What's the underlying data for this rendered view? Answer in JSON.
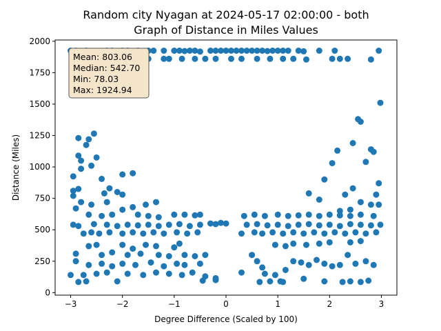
{
  "chart_data": {
    "type": "scatter",
    "title_line1": "Random city Nyagan at 2024-05-17 02:00:00  - both",
    "title_line2": "Graph of Distance in Miles Values",
    "xlabel": "Degree Difference (Scaled by 100)",
    "ylabel": "Distance (Miles)",
    "xlim": [
      -3.3,
      3.3
    ],
    "ylim": [
      -20,
      2010
    ],
    "x_ticks": [
      -3,
      -2,
      -1,
      0,
      1,
      2,
      3
    ],
    "x_tick_labels": [
      "−3",
      "−2",
      "−1",
      "0",
      "1",
      "2",
      "3"
    ],
    "y_ticks": [
      0,
      250,
      500,
      750,
      1000,
      1250,
      1500,
      1750,
      2000
    ],
    "y_tick_labels": [
      "0",
      "250",
      "500",
      "750",
      "1000",
      "1250",
      "1500",
      "1750",
      "2000"
    ],
    "grid": false,
    "legend": null,
    "stats_box": {
      "placement": "top-left",
      "lines": [
        "Mean: 803.06",
        "Median: 542.70",
        "Min: 78.03",
        "Max: 1924.94"
      ]
    },
    "colors": {
      "points": "#1f77b4",
      "stats_fill": "#f5e6cb",
      "stats_edge": "#555555"
    },
    "series": [
      {
        "values": [
          [
            -3.0,
            1925
          ],
          [
            -2.9,
            1925
          ],
          [
            -2.8,
            1920
          ],
          [
            -2.7,
            1925
          ],
          [
            -2.6,
            1915
          ],
          [
            -2.5,
            1920
          ],
          [
            -2.3,
            1925
          ],
          [
            -2.2,
            1925
          ],
          [
            -2.1,
            1922
          ],
          [
            -2.0,
            1925
          ],
          [
            -1.9,
            1925
          ],
          [
            -1.8,
            1922
          ],
          [
            -1.7,
            1925
          ],
          [
            -1.6,
            1918
          ],
          [
            -1.5,
            1925
          ],
          [
            -1.4,
            1925
          ],
          [
            -1.2,
            1925
          ],
          [
            -1.0,
            1925
          ],
          [
            -0.9,
            1925
          ],
          [
            -0.8,
            1922
          ],
          [
            -0.7,
            1925
          ],
          [
            -0.6,
            1925
          ],
          [
            -0.5,
            1918
          ],
          [
            -0.3,
            1925
          ],
          [
            -0.2,
            1925
          ],
          [
            -0.1,
            1925
          ],
          [
            0.0,
            1925
          ],
          [
            0.1,
            1925
          ],
          [
            0.2,
            1925
          ],
          [
            0.3,
            1925
          ],
          [
            0.4,
            1925
          ],
          [
            0.5,
            1925
          ],
          [
            0.6,
            1925
          ],
          [
            0.7,
            1925
          ],
          [
            0.8,
            1922
          ],
          [
            0.9,
            1925
          ],
          [
            1.0,
            1925
          ],
          [
            1.1,
            1925
          ],
          [
            1.2,
            1925
          ],
          [
            1.4,
            1925
          ],
          [
            1.5,
            1920
          ],
          [
            1.8,
            1925
          ],
          [
            2.1,
            1925
          ],
          [
            2.95,
            1925
          ],
          [
            -2.85,
            1855
          ],
          [
            -2.65,
            1860
          ],
          [
            -2.45,
            1860
          ],
          [
            -2.2,
            1865
          ],
          [
            -1.95,
            1860
          ],
          [
            -1.7,
            1860
          ],
          [
            -1.5,
            1860
          ],
          [
            -1.2,
            1860
          ],
          [
            -1.1,
            1860
          ],
          [
            -0.85,
            1860
          ],
          [
            -0.6,
            1860
          ],
          [
            -0.4,
            1860
          ],
          [
            -0.2,
            1860
          ],
          [
            0.1,
            1860
          ],
          [
            0.3,
            1860
          ],
          [
            0.6,
            1860
          ],
          [
            0.85,
            1860
          ],
          [
            1.1,
            1860
          ],
          [
            1.3,
            1860
          ],
          [
            1.55,
            1855
          ],
          [
            2.05,
            1860
          ],
          [
            2.2,
            1860
          ],
          [
            2.35,
            1860
          ],
          [
            2.8,
            1855
          ],
          [
            2.98,
            1510
          ],
          [
            -2.55,
            1265
          ],
          [
            -2.85,
            1230
          ],
          [
            -2.65,
            1220
          ],
          [
            -2.7,
            1175
          ],
          [
            -2.5,
            1075
          ],
          [
            -2.85,
            1090
          ],
          [
            -2.8,
            1050
          ],
          [
            -2.6,
            1010
          ],
          [
            -2.8,
            985
          ],
          [
            -2.95,
            925
          ],
          [
            -2.4,
            905
          ],
          [
            -2.0,
            940
          ],
          [
            -1.8,
            950
          ],
          [
            -2.95,
            810
          ],
          [
            -2.85,
            825
          ],
          [
            -2.25,
            830
          ],
          [
            -2.1,
            800
          ],
          [
            -2.95,
            770
          ],
          [
            -2.35,
            790
          ],
          [
            -2.0,
            780
          ],
          [
            -2.3,
            720
          ],
          [
            -2.8,
            720
          ],
          [
            -2.6,
            700
          ],
          [
            -2.9,
            670
          ],
          [
            -1.8,
            680
          ],
          [
            -2.0,
            660
          ],
          [
            -1.55,
            700
          ],
          [
            -1.35,
            720
          ],
          [
            -2.65,
            620
          ],
          [
            -2.4,
            610
          ],
          [
            -2.2,
            620
          ],
          [
            -1.7,
            620
          ],
          [
            -1.5,
            610
          ],
          [
            -1.3,
            600
          ],
          [
            -1.0,
            620
          ],
          [
            -0.8,
            620
          ],
          [
            -0.6,
            615
          ],
          [
            -0.5,
            620
          ],
          [
            -2.95,
            540
          ],
          [
            -2.85,
            530
          ],
          [
            -2.55,
            545
          ],
          [
            -2.3,
            540
          ],
          [
            -2.1,
            530
          ],
          [
            -1.9,
            540
          ],
          [
            -1.7,
            535
          ],
          [
            -1.5,
            540
          ],
          [
            -1.3,
            530
          ],
          [
            -1.1,
            540
          ],
          [
            -0.9,
            545
          ],
          [
            -0.7,
            530
          ],
          [
            -0.5,
            540
          ],
          [
            -0.3,
            550
          ],
          [
            -0.2,
            545
          ],
          [
            -0.1,
            555
          ],
          [
            0.0,
            550
          ],
          [
            -2.75,
            470
          ],
          [
            -2.6,
            480
          ],
          [
            -2.45,
            470
          ],
          [
            -2.25,
            480
          ],
          [
            -2.0,
            470
          ],
          [
            -1.8,
            480
          ],
          [
            -1.6,
            470
          ],
          [
            -1.4,
            480
          ],
          [
            -1.2,
            470
          ],
          [
            -0.95,
            480
          ],
          [
            -0.75,
            470
          ],
          [
            -0.55,
            480
          ],
          [
            -2.65,
            370
          ],
          [
            -2.5,
            380
          ],
          [
            -2.0,
            380
          ],
          [
            -1.8,
            350
          ],
          [
            -1.55,
            380
          ],
          [
            -1.35,
            370
          ],
          [
            -1.0,
            360
          ],
          [
            -0.9,
            390
          ],
          [
            -2.9,
            310
          ],
          [
            -2.4,
            300
          ],
          [
            -2.2,
            320
          ],
          [
            -1.9,
            300
          ],
          [
            -1.65,
            310
          ],
          [
            -1.3,
            300
          ],
          [
            -1.1,
            290
          ],
          [
            -0.8,
            300
          ],
          [
            -0.6,
            290
          ],
          [
            -0.4,
            300
          ],
          [
            -2.9,
            250
          ],
          [
            -2.65,
            220
          ],
          [
            -2.4,
            230
          ],
          [
            -2.2,
            210
          ],
          [
            -2.0,
            230
          ],
          [
            -1.75,
            220
          ],
          [
            -1.45,
            240
          ],
          [
            -1.2,
            210
          ],
          [
            -0.95,
            230
          ],
          [
            -0.8,
            220
          ],
          [
            -0.5,
            230
          ],
          [
            -2.75,
            140
          ],
          [
            -3.0,
            140
          ],
          [
            -2.5,
            150
          ],
          [
            -2.3,
            160
          ],
          [
            -1.9,
            150
          ],
          [
            -1.6,
            140
          ],
          [
            -1.35,
            160
          ],
          [
            -1.1,
            150
          ],
          [
            -0.85,
            140
          ],
          [
            -0.65,
            160
          ],
          [
            -0.4,
            130
          ],
          [
            -0.2,
            115
          ],
          [
            -2.85,
            85
          ],
          [
            -2.7,
            90
          ],
          [
            -2.1,
            90
          ],
          [
            -0.45,
            95
          ],
          [
            -0.2,
            100
          ],
          [
            0.3,
            160
          ],
          [
            0.5,
            300
          ],
          [
            0.6,
            250
          ],
          [
            0.7,
            200
          ],
          [
            0.65,
            85
          ],
          [
            0.85,
            90
          ],
          [
            0.75,
            150
          ],
          [
            0.95,
            140
          ],
          [
            1.05,
            90
          ],
          [
            1.15,
            180
          ],
          [
            1.3,
            250
          ],
          [
            1.45,
            240
          ],
          [
            1.6,
            220
          ],
          [
            1.75,
            260
          ],
          [
            1.9,
            230
          ],
          [
            2.05,
            210
          ],
          [
            2.2,
            220
          ],
          [
            2.35,
            300
          ],
          [
            2.5,
            230
          ],
          [
            2.7,
            250
          ],
          [
            2.85,
            220
          ],
          [
            1.1,
            85
          ],
          [
            1.5,
            110
          ],
          [
            1.9,
            90
          ],
          [
            2.25,
            85
          ],
          [
            2.4,
            90
          ],
          [
            2.6,
            85
          ],
          [
            2.75,
            95
          ],
          [
            0.3,
            470
          ],
          [
            0.55,
            480
          ],
          [
            0.7,
            470
          ],
          [
            0.9,
            480
          ],
          [
            1.1,
            470
          ],
          [
            1.3,
            480
          ],
          [
            1.5,
            470
          ],
          [
            1.7,
            480
          ],
          [
            1.9,
            470
          ],
          [
            2.1,
            480
          ],
          [
            2.3,
            470
          ],
          [
            2.5,
            480
          ],
          [
            2.7,
            470
          ],
          [
            2.9,
            480
          ],
          [
            0.4,
            540
          ],
          [
            0.6,
            545
          ],
          [
            0.8,
            535
          ],
          [
            1.0,
            540
          ],
          [
            1.2,
            530
          ],
          [
            1.4,
            540
          ],
          [
            1.6,
            545
          ],
          [
            1.8,
            535
          ],
          [
            2.0,
            540
          ],
          [
            2.2,
            530
          ],
          [
            2.4,
            545
          ],
          [
            2.6,
            540
          ],
          [
            2.8,
            535
          ],
          [
            2.98,
            540
          ],
          [
            0.35,
            610
          ],
          [
            0.55,
            620
          ],
          [
            0.75,
            610
          ],
          [
            1.0,
            620
          ],
          [
            1.2,
            610
          ],
          [
            1.4,
            615
          ],
          [
            1.6,
            620
          ],
          [
            1.8,
            610
          ],
          [
            2.0,
            620
          ],
          [
            2.2,
            615
          ],
          [
            2.4,
            610
          ],
          [
            2.6,
            620
          ],
          [
            2.85,
            610
          ],
          [
            1.3,
            390
          ],
          [
            1.55,
            380
          ],
          [
            1.8,
            390
          ],
          [
            2.0,
            400
          ],
          [
            2.4,
            400
          ],
          [
            2.6,
            410
          ],
          [
            0.95,
            380
          ],
          [
            1.15,
            370
          ],
          [
            1.6,
            790
          ],
          [
            1.8,
            740
          ],
          [
            1.9,
            900
          ],
          [
            2.05,
            1030
          ],
          [
            2.15,
            1130
          ],
          [
            2.45,
            1190
          ],
          [
            2.55,
            1380
          ],
          [
            2.6,
            1360
          ],
          [
            2.7,
            1040
          ],
          [
            2.8,
            1140
          ],
          [
            2.85,
            1120
          ],
          [
            2.95,
            870
          ],
          [
            2.3,
            780
          ],
          [
            2.45,
            830
          ],
          [
            2.6,
            720
          ],
          [
            2.8,
            700
          ],
          [
            2.95,
            700
          ],
          [
            2.9,
            780
          ],
          [
            2.2,
            650
          ],
          [
            2.4,
            660
          ]
        ]
      }
    ]
  }
}
